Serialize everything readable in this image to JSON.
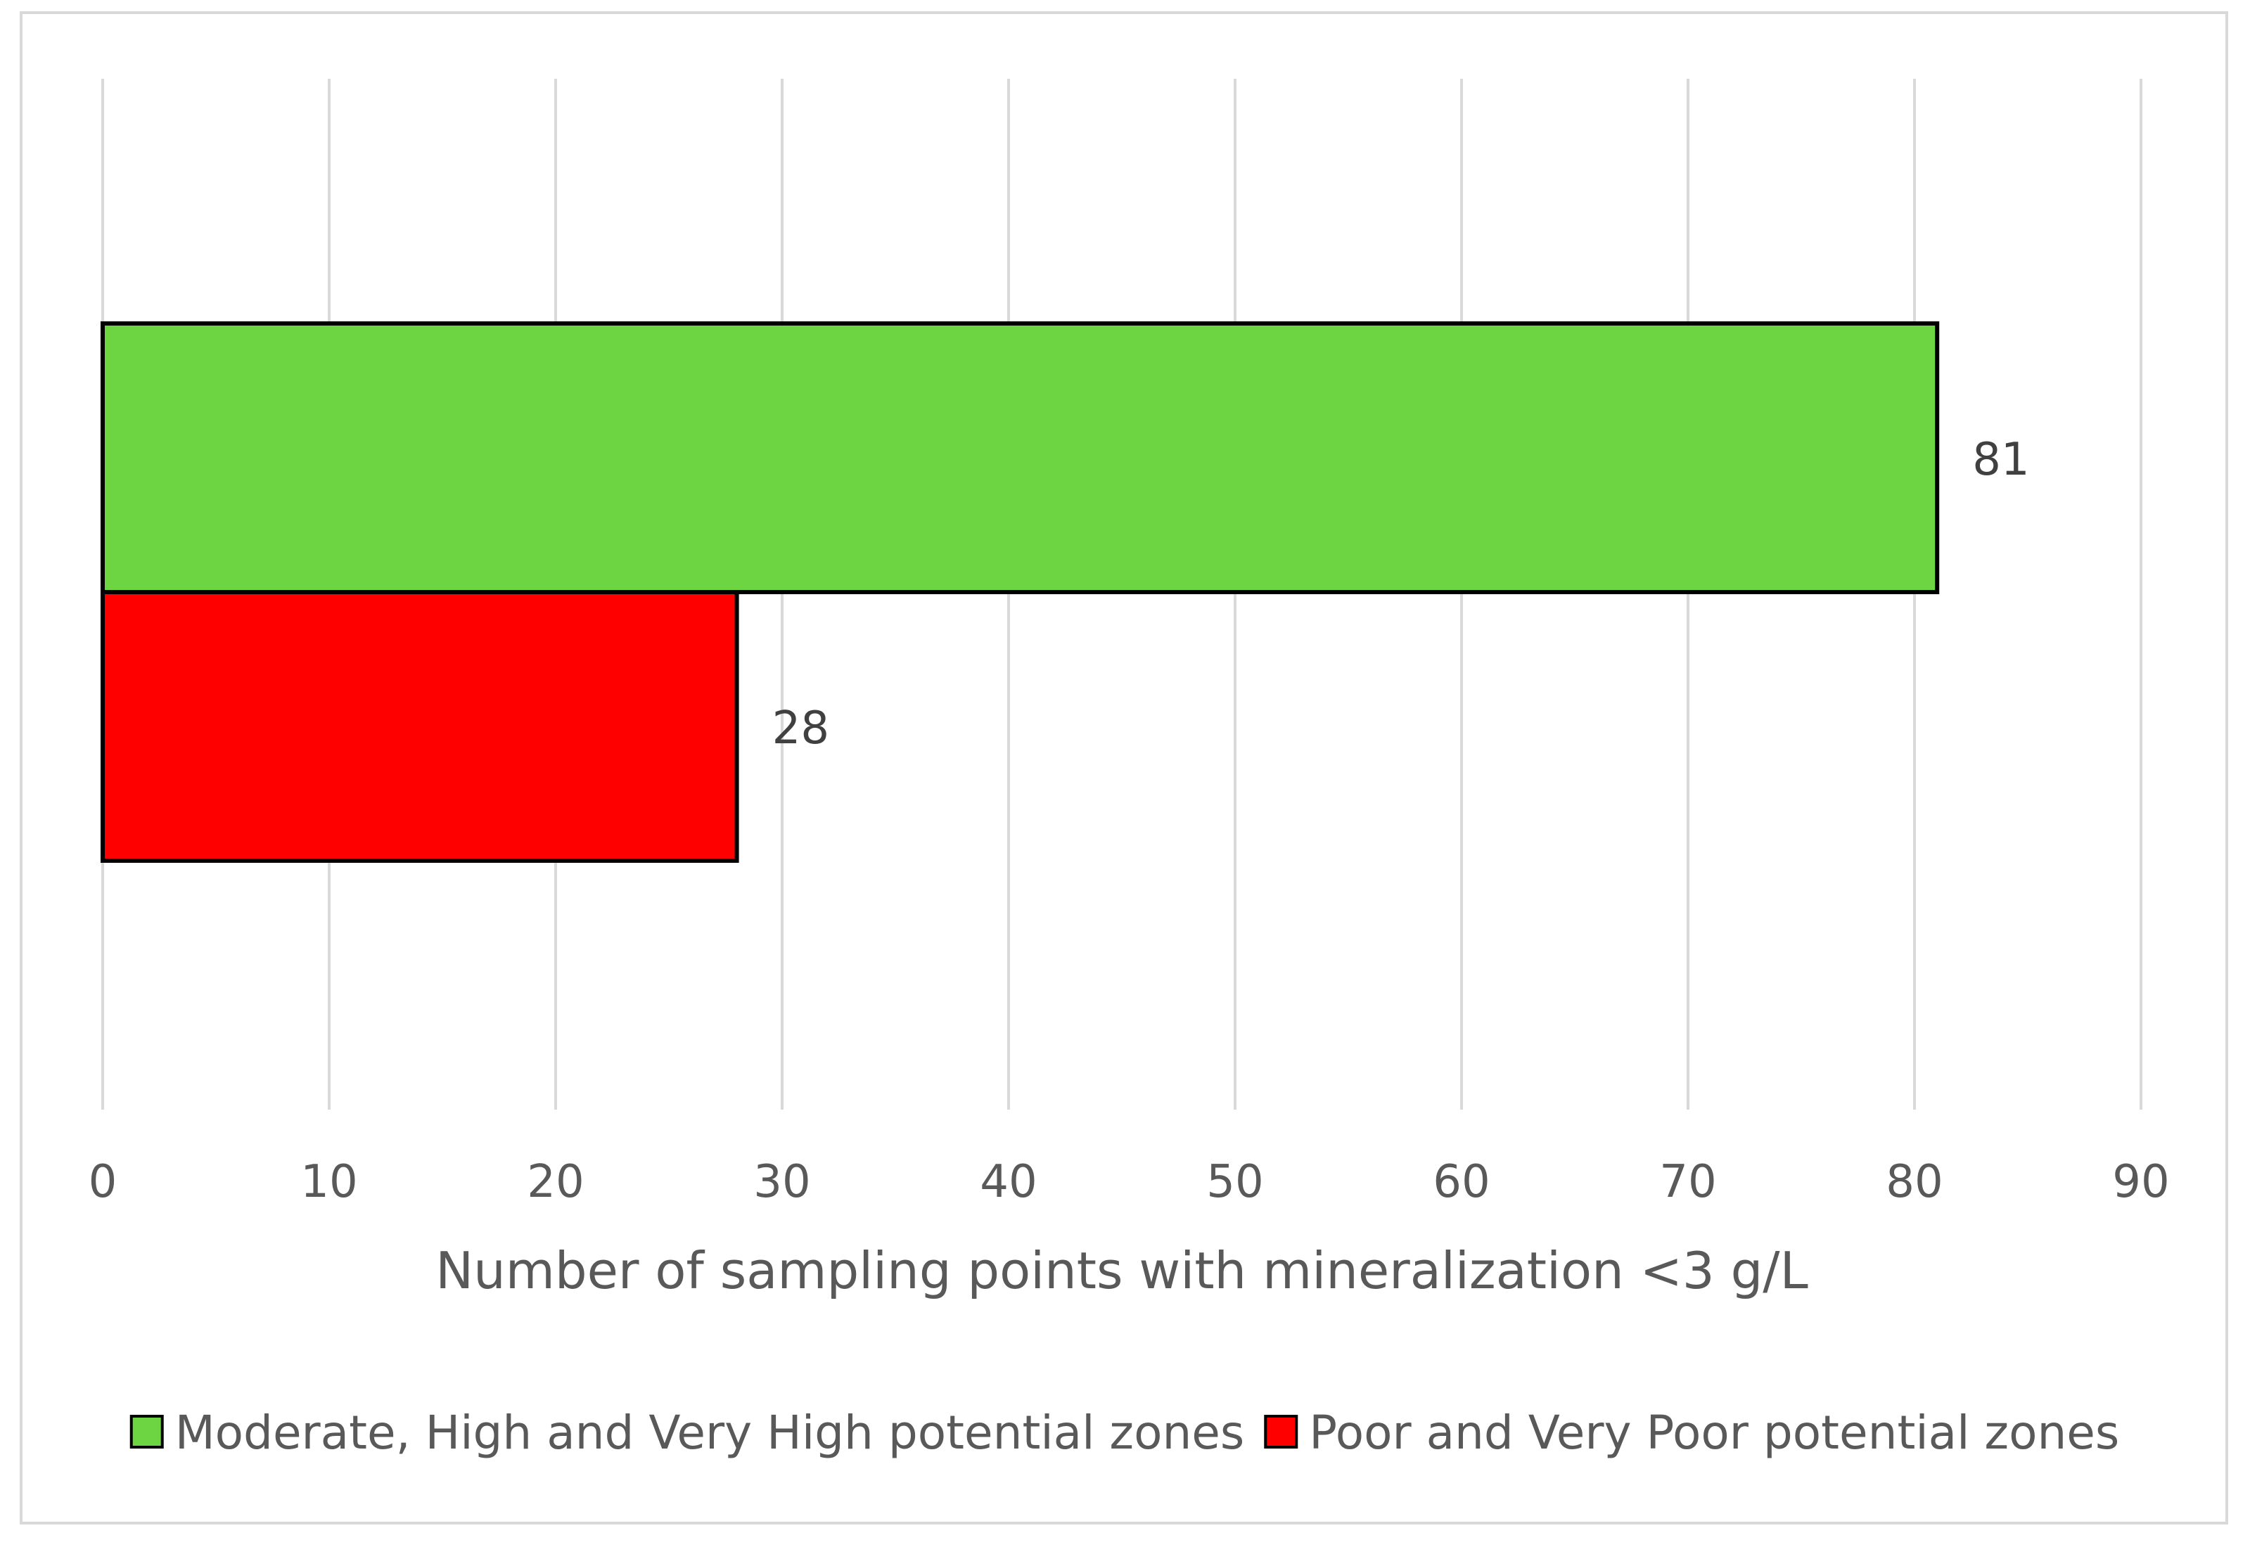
{
  "chart_data": {
    "type": "bar",
    "orientation": "horizontal",
    "title": "",
    "xlabel": "Number of sampling points with mineralization <3 g/L",
    "ylabel": "",
    "xlim": [
      0,
      90
    ],
    "xticks": [
      "0",
      "10",
      "20",
      "30",
      "40",
      "50",
      "60",
      "70",
      "80",
      "90"
    ],
    "grid": true,
    "legend_position": "bottom",
    "series": [
      {
        "name": "Moderate, High and Very High potential zones",
        "values": [
          81
        ],
        "labels": [
          "81"
        ],
        "color": "#6dd442"
      },
      {
        "name": "Poor and Very Poor potential zones",
        "values": [
          28
        ],
        "labels": [
          "28"
        ],
        "color": "#ff0000"
      }
    ]
  }
}
